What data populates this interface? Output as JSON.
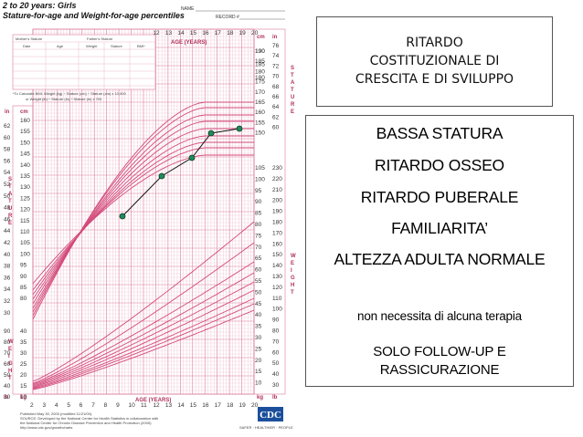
{
  "chart": {
    "header_title_line1": "2 to 20 years: Girls",
    "header_title_line2": "Stature-for-age and Weight-for-age percentiles",
    "name_label": "NAME",
    "record_label": "RECORD #",
    "parent_table_headers": [
      "Mother's Stature",
      "Father's Stature"
    ],
    "parent_table_cols": [
      "Date",
      "Age",
      "Weight",
      "Stature",
      "BMI*"
    ],
    "bmi_note_line1": "*To Calculate BMI: Weight (kg) ÷ Stature (cm) ÷ Stature (cm) x 10,000",
    "bmi_note_line2": "or Weight (lb) ÷ Stature (in) ÷ Stature (in) x 703",
    "top_ages": [
      "12",
      "13",
      "14",
      "15",
      "16",
      "17",
      "18",
      "19",
      "20"
    ],
    "top_axis_title": "AGE (YEARS)",
    "bottom_ages": [
      "2",
      "3",
      "4",
      "5",
      "6",
      "7",
      "8",
      "9",
      "10",
      "11",
      "12",
      "13",
      "14",
      "15",
      "16",
      "17",
      "18",
      "19",
      "20"
    ],
    "bottom_axis_title": "AGE (YEARS)",
    "right_cm_label": "cm",
    "right_in_label": "in",
    "left_in_label": "in",
    "left_cm_label": "cm",
    "left_lb_label": "lb",
    "left_kg_label": "kg",
    "right_kg_label": "kg",
    "right_lb_label": "lb",
    "stature_word": "STATURE",
    "weight_word": "WEIGHT",
    "cm_ticks": [
      "190",
      "185",
      "180",
      "175",
      "170",
      "165",
      "160",
      "155",
      "150",
      "145",
      "140",
      "135",
      "130",
      "125",
      "120",
      "115",
      "110",
      "105",
      "100",
      "95",
      "90",
      "85",
      "80"
    ],
    "in_ticks": [
      "62",
      "60",
      "58",
      "56",
      "54",
      "52",
      "50",
      "48",
      "46",
      "44",
      "42",
      "40",
      "38",
      "36",
      "34",
      "32",
      "30"
    ],
    "right_in_ticks": [
      "76",
      "74",
      "72",
      "70",
      "68",
      "66",
      "64",
      "62",
      "60"
    ],
    "kg_ticks": [
      "105",
      "100",
      "95",
      "90",
      "85",
      "80",
      "75",
      "70",
      "65",
      "60",
      "55",
      "50",
      "45",
      "40",
      "35",
      "30",
      "25",
      "20",
      "15",
      "10"
    ],
    "lb_ticks": [
      "230",
      "220",
      "210",
      "200",
      "190",
      "180",
      "170",
      "160",
      "150",
      "140",
      "130",
      "120",
      "110",
      "100",
      "90",
      "80",
      "70",
      "60",
      "50",
      "40",
      "30"
    ],
    "footer_line1": "Published May 30, 2000 (modified 11/21/00).",
    "footer_line2": "SOURCE: Developed by the National Center for Health Statistics in collaboration with",
    "footer_line3": "the National Center for Chronic Disease Prevention and Health Promotion (2000).",
    "footer_line4": "http://www.cdc.gov/growthcharts",
    "cdc_logo": "CDC",
    "cdc_tagline": "SAFER · HEALTHIER · PEOPLE",
    "colors": {
      "curve": "#d34a7a",
      "grid": "#e9a9bf",
      "grid_bold": "#d97a9c",
      "patient": "#1f8a5a"
    }
  },
  "right_top": {
    "line1": "RITARDO",
    "line2": "COSTITUZIONALE DI",
    "line3": "CRESCITA E DI SVILUPPO"
  },
  "right_bottom": {
    "item1": "BASSA STATURA",
    "item2": "RITARDO OSSEO",
    "item3": "RITARDO PUBERALE",
    "item4": "FAMILIARITA’",
    "item5": "ALTEZZA ADULTA NORMALE",
    "note": "non necessita di alcuna terapia",
    "followup1": "SOLO FOLLOW-UP E",
    "followup2": "RASSICURAZIONE"
  }
}
